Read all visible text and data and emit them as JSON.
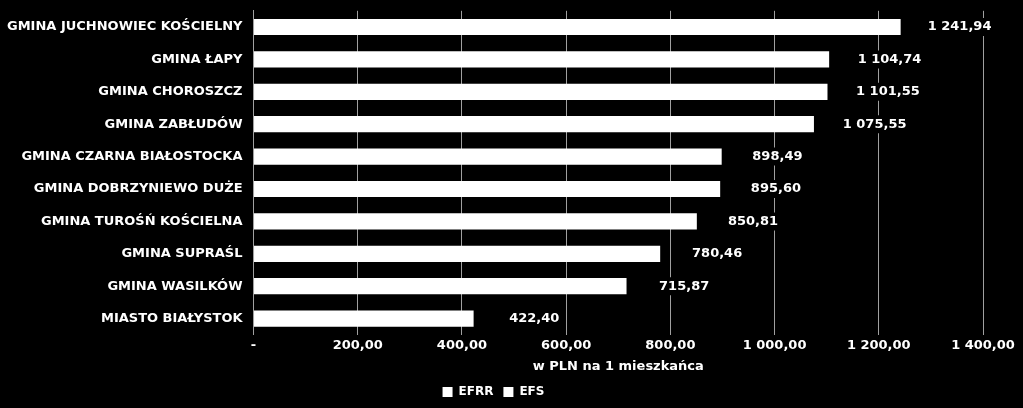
{
  "chart_data": {
    "type": "bar",
    "orientation": "horizontal",
    "stacked": true,
    "categories": [
      "GMINA JUCHNOWIEC KOŚCIELNY",
      "GMINA ŁAPY",
      "GMINA CHOROSZCZ",
      "GMINA ZABŁUDÓW",
      "GMINA CZARNA BIAŁOSTOCKA",
      "GMINA DOBRZYNIEWO DUŻE",
      "GMINA TUROŚŃ KOŚCIELNA",
      "GMINA SUPRAŚL",
      "GMINA WASILKÓW",
      "MIASTO BIAŁYSTOK"
    ],
    "series": [
      {
        "name": "EFRR",
        "color": "#ffffff",
        "values": [
          1241.94,
          1104.74,
          1101.55,
          1075.55,
          898.49,
          895.6,
          850.81,
          780.46,
          715.87,
          422.4
        ],
        "value_labels": [
          "1 241,94",
          "1 104,74",
          "1 101,55",
          "1 075,55",
          "898,49",
          "895,60",
          "850,81",
          "780,46",
          "715,87",
          "422,40"
        ]
      },
      {
        "name": "EFS",
        "color": "#ffffff",
        "values": [
          null,
          null,
          null,
          null,
          null,
          null,
          null,
          null,
          null,
          null
        ]
      }
    ],
    "xlabel": "w PLN na 1 mieszkańca",
    "xlim": [
      0,
      1400
    ],
    "xticks": [
      {
        "value": 0,
        "label": "-"
      },
      {
        "value": 200,
        "label": "200,00"
      },
      {
        "value": 400,
        "label": "400,00"
      },
      {
        "value": 600,
        "label": "600,00"
      },
      {
        "value": 800,
        "label": "800,00"
      },
      {
        "value": 1000,
        "label": "1 000,00"
      },
      {
        "value": 1200,
        "label": "1 200,00"
      },
      {
        "value": 1400,
        "label": "1 400,00"
      }
    ],
    "grid": "x",
    "legend": "bottom"
  }
}
